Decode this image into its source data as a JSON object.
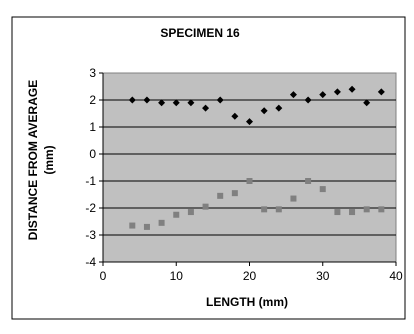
{
  "chart_data": {
    "type": "scatter",
    "title": "SPECIMEN 16",
    "xlabel": "LENGTH (mm)",
    "ylabel_line1": "DISTANCE FROM AVERAGE",
    "ylabel_line2": "(mm)",
    "xlim": [
      0,
      40
    ],
    "ylim": [
      -4,
      3
    ],
    "xticks": [
      0,
      10,
      20,
      30,
      40
    ],
    "yticks": [
      -4,
      -3,
      -2,
      -1,
      0,
      1,
      2,
      3
    ],
    "grid": "horizontal",
    "plot_background": "#c0c0c0",
    "series": [
      {
        "marker": "diamond",
        "color": "#000000",
        "points": [
          [
            4,
            2.0
          ],
          [
            6,
            2.0
          ],
          [
            8,
            1.9
          ],
          [
            10,
            1.9
          ],
          [
            12,
            1.9
          ],
          [
            14,
            1.7
          ],
          [
            16,
            2.0
          ],
          [
            18,
            1.4
          ],
          [
            20,
            1.2
          ],
          [
            22,
            1.6
          ],
          [
            24,
            1.7
          ],
          [
            26,
            2.2
          ],
          [
            28,
            2.0
          ],
          [
            30,
            2.2
          ],
          [
            32,
            2.3
          ],
          [
            34,
            2.4
          ],
          [
            36,
            1.9
          ],
          [
            38,
            2.3
          ]
        ]
      },
      {
        "marker": "square",
        "color": "#808080",
        "points": [
          [
            4,
            -2.65
          ],
          [
            6,
            -2.7
          ],
          [
            8,
            -2.55
          ],
          [
            10,
            -2.25
          ],
          [
            12,
            -2.15
          ],
          [
            14,
            -1.95
          ],
          [
            16,
            -1.55
          ],
          [
            18,
            -1.45
          ],
          [
            20,
            -1.0
          ],
          [
            22,
            -2.05
          ],
          [
            24,
            -2.05
          ],
          [
            26,
            -1.65
          ],
          [
            28,
            -1.0
          ],
          [
            30,
            -1.3
          ],
          [
            32,
            -2.15
          ],
          [
            34,
            -2.15
          ],
          [
            36,
            -2.05
          ],
          [
            38,
            -2.05
          ]
        ]
      }
    ]
  }
}
